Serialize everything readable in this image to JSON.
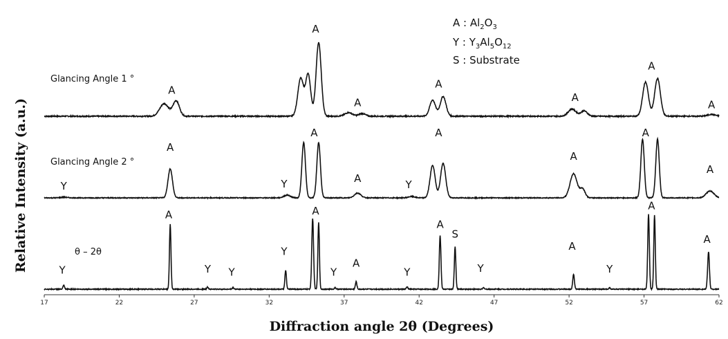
{
  "chart_data": {
    "type": "line",
    "xlabel": "Diffraction angle 2θ (Degrees)",
    "ylabel": "Relative Intensity (a.u.)",
    "xlim": [
      17,
      62
    ],
    "xticks": [
      17,
      22,
      27,
      32,
      37,
      42,
      47,
      52,
      57,
      62
    ],
    "xtick_labels": [
      "17",
      "22",
      "27",
      "32",
      "37",
      "42",
      "47",
      "52",
      "57",
      "62"
    ],
    "grid": false,
    "legend": {
      "placement": "top-right",
      "entries": [
        {
          "key": "A",
          "sep": " : ",
          "name": "Al",
          "sub": "2",
          "name2": "O",
          "sub2": "3"
        },
        {
          "key": "Y",
          "sep": " : ",
          "name": "Y",
          "sub": "3",
          "name2": "Al",
          "sub2": "5",
          "name3": "O",
          "sub3": "12"
        },
        {
          "key": "S",
          "sep": " : ",
          "name": "Substrate"
        }
      ]
    },
    "series": [
      {
        "label": "Glancing Angle 1 °",
        "baseline": 0,
        "peaks": [
          {
            "x": 25.0,
            "h": 0.14,
            "w": 0.7
          },
          {
            "x": 25.8,
            "h": 0.17,
            "w": 0.5
          },
          {
            "x": 34.1,
            "h": 0.42,
            "w": 0.45
          },
          {
            "x": 34.6,
            "h": 0.46,
            "w": 0.4
          },
          {
            "x": 35.3,
            "h": 0.82,
            "w": 0.4
          },
          {
            "x": 37.3,
            "h": 0.04,
            "w": 0.6
          },
          {
            "x": 38.2,
            "h": 0.03,
            "w": 0.5
          },
          {
            "x": 42.9,
            "h": 0.18,
            "w": 0.45
          },
          {
            "x": 43.6,
            "h": 0.22,
            "w": 0.45
          },
          {
            "x": 52.2,
            "h": 0.08,
            "w": 0.6
          },
          {
            "x": 53.0,
            "h": 0.06,
            "w": 0.5
          },
          {
            "x": 57.1,
            "h": 0.38,
            "w": 0.45
          },
          {
            "x": 57.9,
            "h": 0.42,
            "w": 0.45
          },
          {
            "x": 61.5,
            "h": 0.02,
            "w": 0.6
          }
        ],
        "annotations": [
          {
            "text": "A",
            "x": 25.5,
            "y": 0.25
          },
          {
            "text": "A",
            "x": 35.1,
            "y": 0.93
          },
          {
            "text": "A",
            "x": 37.9,
            "y": 0.11
          },
          {
            "text": "A",
            "x": 43.3,
            "y": 0.32
          },
          {
            "text": "A",
            "x": 52.4,
            "y": 0.17
          },
          {
            "text": "A",
            "x": 57.5,
            "y": 0.52
          },
          {
            "text": "A",
            "x": 61.5,
            "y": 0.09
          }
        ]
      },
      {
        "label": "Glancing Angle 2 °",
        "baseline": 0,
        "peaks": [
          {
            "x": 18.3,
            "h": 0.01,
            "w": 0.5
          },
          {
            "x": 25.4,
            "h": 0.42,
            "w": 0.35
          },
          {
            "x": 33.2,
            "h": 0.04,
            "w": 0.5
          },
          {
            "x": 34.3,
            "h": 0.8,
            "w": 0.28
          },
          {
            "x": 35.3,
            "h": 0.8,
            "w": 0.28
          },
          {
            "x": 37.9,
            "h": 0.07,
            "w": 0.5
          },
          {
            "x": 41.5,
            "h": 0.02,
            "w": 0.5
          },
          {
            "x": 42.9,
            "h": 0.47,
            "w": 0.4
          },
          {
            "x": 43.6,
            "h": 0.5,
            "w": 0.4
          },
          {
            "x": 52.3,
            "h": 0.35,
            "w": 0.55
          },
          {
            "x": 52.9,
            "h": 0.13,
            "w": 0.4
          },
          {
            "x": 56.9,
            "h": 0.85,
            "w": 0.27
          },
          {
            "x": 57.9,
            "h": 0.85,
            "w": 0.27
          },
          {
            "x": 61.4,
            "h": 0.1,
            "w": 0.6
          }
        ],
        "annotations": [
          {
            "text": "Y",
            "x": 18.3,
            "y": 0.12
          },
          {
            "text": "A",
            "x": 25.4,
            "y": 0.68
          },
          {
            "text": "Y",
            "x": 33.0,
            "y": 0.15
          },
          {
            "text": "A",
            "x": 35.0,
            "y": 0.89
          },
          {
            "text": "A",
            "x": 37.9,
            "y": 0.23
          },
          {
            "text": "Y",
            "x": 41.3,
            "y": 0.14
          },
          {
            "text": "A",
            "x": 43.3,
            "y": 0.89
          },
          {
            "text": "A",
            "x": 52.3,
            "y": 0.55
          },
          {
            "text": "A",
            "x": 57.1,
            "y": 0.89
          },
          {
            "text": "A",
            "x": 61.4,
            "y": 0.36
          }
        ]
      },
      {
        "label": "θ – 2θ",
        "baseline": 0,
        "peaks": [
          {
            "x": 18.3,
            "h": 0.05,
            "w": 0.12
          },
          {
            "x": 25.4,
            "h": 0.87,
            "w": 0.12
          },
          {
            "x": 27.9,
            "h": 0.03,
            "w": 0.12
          },
          {
            "x": 29.6,
            "h": 0.02,
            "w": 0.12
          },
          {
            "x": 33.1,
            "h": 0.25,
            "w": 0.12
          },
          {
            "x": 34.9,
            "h": 0.95,
            "w": 0.14
          },
          {
            "x": 35.3,
            "h": 0.9,
            "w": 0.12
          },
          {
            "x": 36.4,
            "h": 0.02,
            "w": 0.12
          },
          {
            "x": 37.8,
            "h": 0.1,
            "w": 0.12
          },
          {
            "x": 41.2,
            "h": 0.03,
            "w": 0.12
          },
          {
            "x": 43.4,
            "h": 0.72,
            "w": 0.13
          },
          {
            "x": 44.4,
            "h": 0.57,
            "w": 0.12
          },
          {
            "x": 46.3,
            "h": 0.02,
            "w": 0.12
          },
          {
            "x": 52.3,
            "h": 0.2,
            "w": 0.13
          },
          {
            "x": 54.7,
            "h": 0.02,
            "w": 0.12
          },
          {
            "x": 57.3,
            "h": 1.0,
            "w": 0.13
          },
          {
            "x": 57.7,
            "h": 0.99,
            "w": 0.12
          },
          {
            "x": 61.3,
            "h": 0.5,
            "w": 0.14
          }
        ],
        "annotations": [
          {
            "text": "Y",
            "x": 18.2,
            "y": 0.21
          },
          {
            "text": "A",
            "x": 25.3,
            "y": 0.95
          },
          {
            "text": "Y",
            "x": 27.9,
            "y": 0.22
          },
          {
            "text": "Y",
            "x": 29.5,
            "y": 0.18
          },
          {
            "text": "Y",
            "x": 33.0,
            "y": 0.46
          },
          {
            "text": "A",
            "x": 35.1,
            "y": 1.0
          },
          {
            "text": "Y",
            "x": 36.3,
            "y": 0.18
          },
          {
            "text": "A",
            "x": 37.8,
            "y": 0.3
          },
          {
            "text": "Y",
            "x": 41.2,
            "y": 0.18
          },
          {
            "text": "A",
            "x": 43.4,
            "y": 0.82
          },
          {
            "text": "S",
            "x": 44.4,
            "y": 0.69
          },
          {
            "text": "Y",
            "x": 46.1,
            "y": 0.23
          },
          {
            "text": "A",
            "x": 52.2,
            "y": 0.53
          },
          {
            "text": "Y",
            "x": 54.7,
            "y": 0.22
          },
          {
            "text": "A",
            "x": 57.5,
            "y": 1.07
          },
          {
            "text": "A",
            "x": 61.2,
            "y": 0.62
          }
        ]
      }
    ]
  }
}
